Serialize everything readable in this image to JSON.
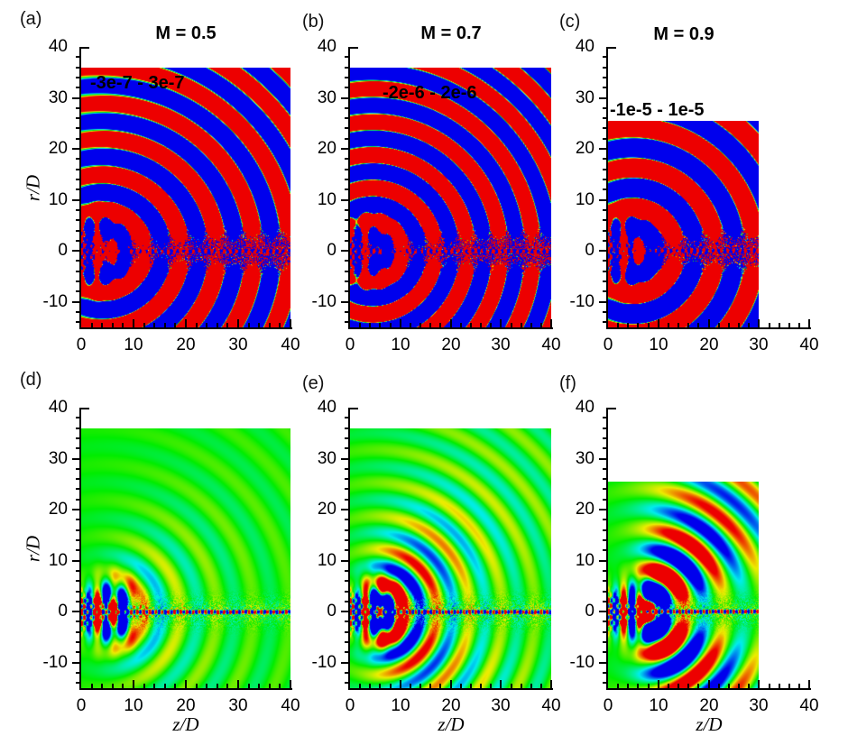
{
  "chart_data": {
    "type": "heatmap",
    "description": "Six contour plots of instantaneous pressure fields of round jets at three Mach numbers; top row saturated narrow contour levels, bottom row wide levels",
    "xlabel": "z/D",
    "ylabel": "r/D",
    "x_range": [
      0,
      40
    ],
    "y_range": [
      -15,
      40
    ],
    "x_ticks": [
      0,
      10,
      20,
      30,
      40
    ],
    "y_ticks": [
      40,
      30,
      20,
      10,
      0,
      -10
    ],
    "x_minor_step": 2,
    "y_minor_step": 2,
    "colormap": "rainbow blue-cyan-green-yellow-orange-red",
    "background_field_color": "#00ed00",
    "positive_color": "#ed0000",
    "negative_color": "#0000ed",
    "panels": [
      {
        "id": "a",
        "label": "(a)",
        "title": "M = 0.5",
        "mach": 0.5,
        "range_label": "-3e-7 - 3e-7",
        "levels_min": -3e-07,
        "levels_max": 3e-07,
        "row": 0,
        "col": 0,
        "field_zmax": 40,
        "field_rmax": 36
      },
      {
        "id": "b",
        "label": "(b)",
        "title": "M = 0.7",
        "mach": 0.7,
        "range_label": "-2e-6 - 2e-6",
        "levels_min": -2e-06,
        "levels_max": 2e-06,
        "row": 0,
        "col": 1,
        "field_zmax": 40,
        "field_rmax": 36
      },
      {
        "id": "c",
        "label": "(c)",
        "title": "M = 0.9",
        "mach": 0.9,
        "range_label": "-1e-5 - 1e-5",
        "levels_min": -1e-05,
        "levels_max": 1e-05,
        "row": 0,
        "col": 2,
        "field_zmax": 30,
        "field_rmax": 25.5
      },
      {
        "id": "d",
        "label": "(d)",
        "title": "",
        "range_label": "",
        "row": 1,
        "col": 0,
        "field_zmax": 40,
        "field_rmax": 36
      },
      {
        "id": "e",
        "label": "(e)",
        "title": "",
        "range_label": "",
        "row": 1,
        "col": 1,
        "field_zmax": 40,
        "field_rmax": 36
      },
      {
        "id": "f",
        "label": "(f)",
        "title": "",
        "range_label": "",
        "row": 1,
        "col": 2,
        "field_zmax": 30,
        "field_rmax": 25.5
      }
    ]
  }
}
